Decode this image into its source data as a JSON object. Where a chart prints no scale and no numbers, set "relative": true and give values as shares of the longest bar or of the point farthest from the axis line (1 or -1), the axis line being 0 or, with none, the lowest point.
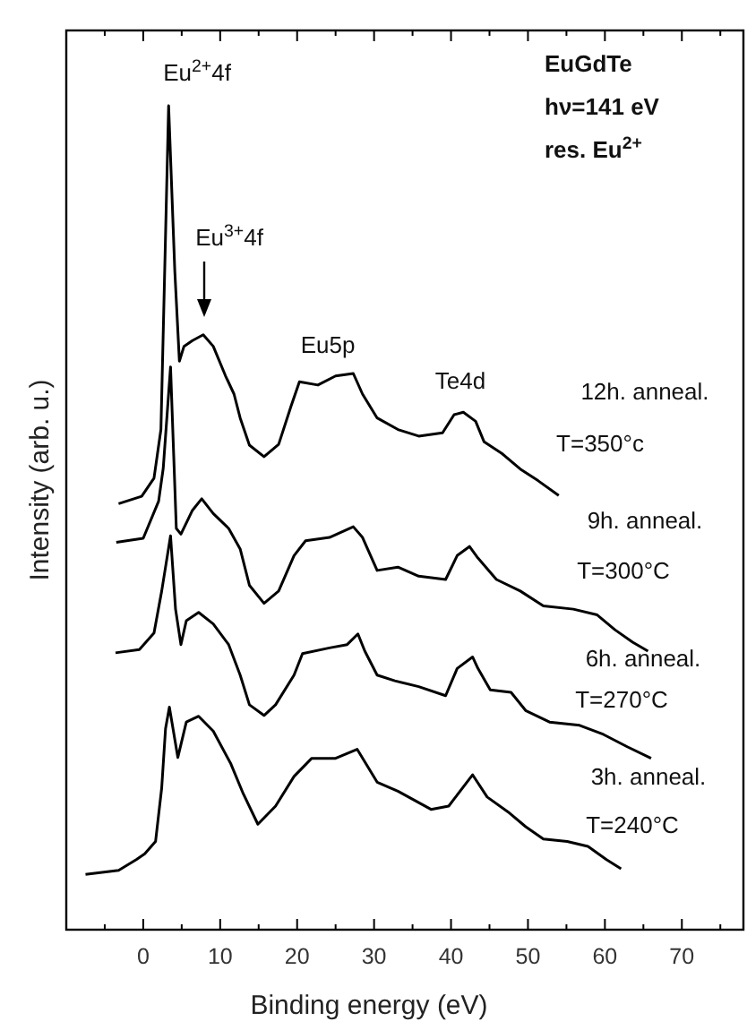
{
  "chart_data": {
    "type": "line",
    "relative": true,
    "xlabel": "Binding energy  (eV)",
    "ylabel": "Intensity  (arb. u.)",
    "xlim": [
      -10,
      78
    ],
    "xticks": [
      {
        "value": -5,
        "label": null
      },
      0,
      {
        "value": 5,
        "label": null
      },
      10,
      {
        "value": 15,
        "label": null
      },
      20,
      {
        "value": 25,
        "label": null
      },
      30,
      {
        "value": 35,
        "label": null
      },
      40,
      {
        "value": 45,
        "label": null
      },
      50,
      {
        "value": 55,
        "label": null
      },
      60,
      {
        "value": 65,
        "label": null
      },
      70,
      {
        "value": 75,
        "label": null
      }
    ],
    "grid": false,
    "marker": "none",
    "line_style": "solid",
    "series": [
      {
        "color": "#000000",
        "x": [
          -3.2,
          -0.2,
          1.4,
          2.3,
          3.3,
          4.1,
          4.7,
          5.3,
          6.4,
          7.8,
          9.1,
          10.7,
          11.8,
          12.6,
          13.8,
          15.7,
          17.6,
          19.2,
          20.3,
          22.7,
          25,
          27.3,
          28.5,
          30.4,
          33.1,
          35.8,
          38.9,
          40.4,
          41.6,
          43.2,
          44.3,
          46.6,
          49,
          51.3,
          54
        ],
        "values": [
          0.517,
          0.526,
          0.548,
          0.607,
          1.0,
          0.8,
          0.69,
          0.708,
          0.715,
          0.722,
          0.708,
          0.672,
          0.65,
          0.621,
          0.588,
          0.574,
          0.589,
          0.635,
          0.665,
          0.661,
          0.672,
          0.675,
          0.65,
          0.621,
          0.607,
          0.599,
          0.603,
          0.625,
          0.628,
          0.617,
          0.592,
          0.578,
          0.559,
          0.545,
          0.527
        ]
      },
      {
        "color": "#000000",
        "x": [
          -3.5,
          0,
          2,
          2.6,
          3.55,
          4.3,
          4.9,
          6.4,
          7.6,
          9.1,
          11.1,
          12.6,
          13.8,
          15.7,
          17.6,
          19.6,
          21.1,
          24.2,
          27.3,
          28.5,
          30.4,
          33.1,
          35.8,
          39.3,
          40.8,
          42.4,
          43.5,
          45.9,
          49,
          52,
          55.9,
          59,
          61.3,
          63.6,
          65.6
        ],
        "values": [
          0.47,
          0.475,
          0.52,
          0.56,
          0.683,
          0.487,
          0.48,
          0.509,
          0.523,
          0.505,
          0.487,
          0.462,
          0.418,
          0.396,
          0.411,
          0.454,
          0.472,
          0.476,
          0.489,
          0.476,
          0.436,
          0.44,
          0.429,
          0.425,
          0.454,
          0.465,
          0.451,
          0.425,
          0.411,
          0.393,
          0.389,
          0.382,
          0.364,
          0.349,
          0.338
        ]
      },
      {
        "color": "#000000",
        "x": [
          -3.6,
          -0.5,
          1.4,
          2.4,
          3.55,
          4.2,
          4.9,
          5.6,
          7.2,
          9.1,
          11.1,
          12.6,
          13.8,
          15.7,
          17.2,
          19.6,
          20.7,
          24.2,
          26.5,
          27.9,
          28.8,
          30.4,
          32.7,
          35.8,
          39.3,
          40.8,
          42.8,
          43.5,
          45.1,
          47.8,
          49.7,
          52.8,
          56.7,
          59.8,
          62.9,
          66
        ],
        "values": [
          0.336,
          0.34,
          0.36,
          0.411,
          0.478,
          0.389,
          0.346,
          0.375,
          0.385,
          0.371,
          0.346,
          0.309,
          0.273,
          0.26,
          0.273,
          0.309,
          0.335,
          0.342,
          0.346,
          0.359,
          0.338,
          0.309,
          0.302,
          0.295,
          0.284,
          0.317,
          0.331,
          0.317,
          0.291,
          0.288,
          0.266,
          0.252,
          0.248,
          0.237,
          0.222,
          0.208
        ]
      },
      {
        "color": "#000000",
        "x": [
          -7.5,
          -3.2,
          -0.9,
          0.2,
          1.6,
          2.4,
          2.9,
          3.4,
          4.5,
          5.6,
          7.2,
          9.1,
          11.4,
          13,
          14.9,
          17.2,
          19.6,
          21.9,
          25,
          27.8,
          30.4,
          33.1,
          37.4,
          39.7,
          42.8,
          44.7,
          47.4,
          49.7,
          52,
          55.1,
          57.8,
          60.2,
          62.1
        ],
        "values": [
          0.067,
          0.072,
          0.085,
          0.092,
          0.107,
          0.172,
          0.244,
          0.27,
          0.209,
          0.252,
          0.259,
          0.241,
          0.201,
          0.165,
          0.128,
          0.15,
          0.186,
          0.208,
          0.208,
          0.219,
          0.179,
          0.168,
          0.146,
          0.15,
          0.188,
          0.161,
          0.143,
          0.125,
          0.11,
          0.107,
          0.101,
          0.085,
          0.074
        ]
      }
    ],
    "annotations": [
      "EuGdTe",
      "hν=141 eV",
      "res. Eu$^{2+}$",
      "Eu$^{2+}$4f",
      "Eu$^{3+}$4f",
      "Eu5p",
      "Te4d",
      "12h.  anneal.",
      "T=350°c",
      "9h.  anneal.",
      "T=300°C",
      "6h.  anneal.",
      "T=270°C",
      "3h. anneal.",
      "T=240°C"
    ]
  }
}
